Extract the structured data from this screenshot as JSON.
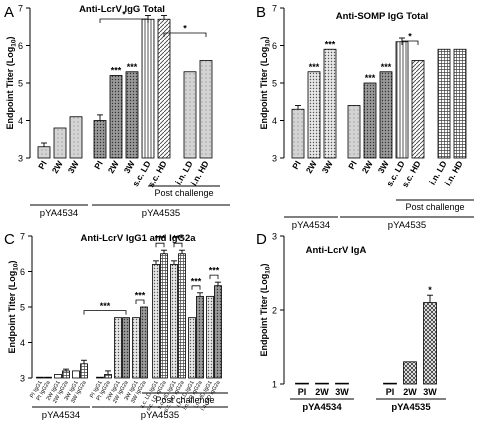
{
  "chart_data": [
    {
      "type": "bar",
      "panel_letter": "A",
      "title": "Anti-LcrV IgG Total",
      "ylabel": "Endpoint Titer (Log10)",
      "ylim": [
        3,
        7
      ],
      "yticks": [
        "3",
        "4",
        "5",
        "6",
        "7"
      ],
      "categories": [
        "PI",
        "2W",
        "3W",
        "PI",
        "2W",
        "3W",
        "s.c. LD",
        "s.c. HD",
        "i.n. LD",
        "i.n. HD"
      ],
      "values": [
        3.3,
        3.8,
        4.1,
        4.0,
        5.2,
        5.3,
        6.7,
        6.7,
        5.3,
        5.6
      ],
      "errors": [
        0.1,
        0,
        0,
        0.15,
        0,
        0,
        0.1,
        0.1,
        0,
        0
      ],
      "patterns": [
        "light",
        "light",
        "light",
        "dark",
        "dark",
        "dark",
        "vlines",
        "diag",
        "light",
        "light"
      ],
      "annotations": [
        "",
        "",
        "",
        "",
        "***",
        "***",
        "",
        "",
        "",
        ""
      ],
      "group_labels": [
        "pYA4534",
        "pYA4535"
      ],
      "sub_label": "Post challenge",
      "brackets": [
        {
          "from": 3,
          "to": 6,
          "label": "*"
        },
        {
          "from": 7,
          "to": 9,
          "label": "*"
        }
      ]
    },
    {
      "type": "bar",
      "panel_letter": "B",
      "title": "Anti-SOMP IgG Total",
      "ylabel": "Endpoint Titer (Log10)",
      "ylim": [
        3,
        7
      ],
      "yticks": [
        "3",
        "4",
        "5",
        "6",
        "7"
      ],
      "categories": [
        "PI",
        "2W",
        "3W",
        "PI",
        "2W",
        "3W",
        "s.c. LD",
        "s.c. HD",
        "i.n. LD",
        "i.n. HD"
      ],
      "values": [
        4.3,
        5.3,
        5.9,
        4.4,
        5.0,
        5.3,
        6.1,
        5.6,
        5.9,
        5.9
      ],
      "errors": [
        0.1,
        0,
        0,
        0,
        0,
        0,
        0.1,
        0,
        0,
        0
      ],
      "patterns": [
        "light",
        "dots",
        "dots",
        "light",
        "dark",
        "dark",
        "vlines",
        "diag",
        "grid",
        "grid"
      ],
      "annotations": [
        "",
        "***",
        "***",
        "",
        "***",
        "***",
        "",
        "",
        "",
        ""
      ],
      "group_labels": [
        "pYA4534",
        "pYA4535"
      ],
      "sub_label": "Post challenge",
      "brackets": [
        {
          "from": 6,
          "to": 7,
          "label": "*"
        }
      ]
    },
    {
      "type": "bar",
      "panel_letter": "C",
      "title": "Anti-LcrV IgG1 and IgG2a",
      "ylabel": "Endpoint Titer (Log10)",
      "ylim": [
        3,
        7
      ],
      "yticks": [
        "3",
        "4",
        "5",
        "6",
        "7"
      ],
      "categories": [
        "PI IgG1",
        "PI IgG2a",
        "2W IgG1",
        "2W IgG2a",
        "3W IgG1",
        "3W IgG2a",
        "PI IgG1",
        "PI IgG2a",
        "2W IgG1",
        "2W IgG2a",
        "3W IgG1",
        "3W IgG2a",
        "s.c. LD IgG1",
        "s.c. LD IgG2a",
        "s.c. HD IgG1",
        "s.c. HD IgG2a",
        "i.n. LD IgG1",
        "i.n. LD IgG2a",
        "i.n. HD IgG1",
        "i.n. HD IgG2a"
      ],
      "values": [
        3.0,
        3.0,
        3.1,
        3.2,
        3.2,
        3.4,
        3.0,
        3.1,
        4.7,
        4.7,
        4.7,
        5.0,
        6.2,
        6.5,
        6.2,
        6.5,
        4.7,
        5.3,
        5.3,
        5.6
      ],
      "errors": [
        0,
        0,
        0,
        0.05,
        0,
        0.1,
        0,
        0.1,
        0,
        0,
        0,
        0,
        0.1,
        0.1,
        0.1,
        0.1,
        0,
        0.1,
        0,
        0.1
      ],
      "patterns": [
        "white",
        "grid",
        "white",
        "grid",
        "white",
        "grid",
        "white",
        "grid",
        "dots",
        "dark",
        "dots",
        "dark",
        "dots",
        "grid",
        "dots",
        "grid",
        "dots",
        "dark",
        "dots",
        "dark"
      ],
      "annotations": [],
      "group_labels": [
        "pYA4534",
        "pYA4535"
      ],
      "sub_label": "Post challenge",
      "brackets": [
        {
          "from": 5,
          "to": 9,
          "label": "***"
        },
        {
          "from": 10,
          "to": 11,
          "label": "***"
        },
        {
          "from": 12,
          "to": 13,
          "label": "***"
        },
        {
          "from": 14,
          "to": 15,
          "label": "***"
        },
        {
          "from": 16,
          "to": 17,
          "label": "***"
        },
        {
          "from": 18,
          "to": 19,
          "label": "***"
        }
      ]
    },
    {
      "type": "bar",
      "panel_letter": "D",
      "title": "Anti-LcrV IgA",
      "ylabel": "Endpoint Titer (Log10)",
      "ylim": [
        1,
        3
      ],
      "yticks": [
        "1",
        "2",
        "3"
      ],
      "categories": [
        "PI",
        "2W",
        "3W",
        "PI",
        "2W",
        "3W"
      ],
      "values": [
        1.0,
        1.0,
        1.0,
        1.0,
        1.3,
        2.1
      ],
      "errors": [
        0,
        0,
        0,
        0,
        0,
        0.1
      ],
      "patterns": [
        "white",
        "white",
        "white",
        "light",
        "dense",
        "dense"
      ],
      "annotations": [
        "",
        "",
        "",
        "",
        "",
        "*"
      ],
      "group_labels": [
        "pYA4534",
        "pYA4535"
      ],
      "sub_label": "",
      "brackets": []
    }
  ]
}
